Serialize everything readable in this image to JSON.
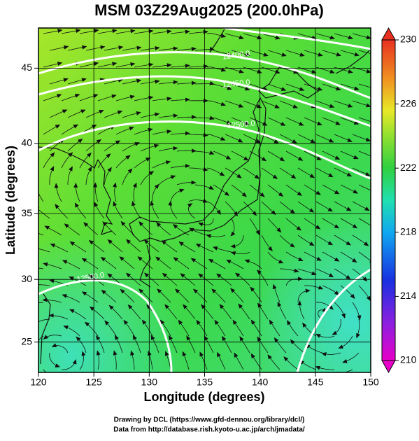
{
  "title": "MSM 03Z29Aug2025 (200.0hPa)",
  "x_label": "Longitude (degrees)",
  "y_label": "Latitude  (degrees)",
  "map": {
    "xlim": [
      120,
      150
    ],
    "ylim": [
      22.5,
      47.5
    ],
    "xticks": [
      120,
      125,
      130,
      135,
      140,
      145,
      150
    ],
    "yticks": [
      25,
      30,
      35,
      40,
      45
    ],
    "grid": true,
    "contour_labels": [
      "12400.0",
      "12450.0",
      "12500.0",
      "12500.0"
    ]
  },
  "colorbar": {
    "lim": [
      210,
      230
    ],
    "ticks": [
      210,
      214,
      218,
      222,
      226,
      230
    ]
  },
  "credits": [
    "Drawing by DCL (https://www.gfd-dennou.org/library/dcl/)",
    "Data from http://database.rish.kyoto-u.ac.jp/arch/jmadata/"
  ]
}
